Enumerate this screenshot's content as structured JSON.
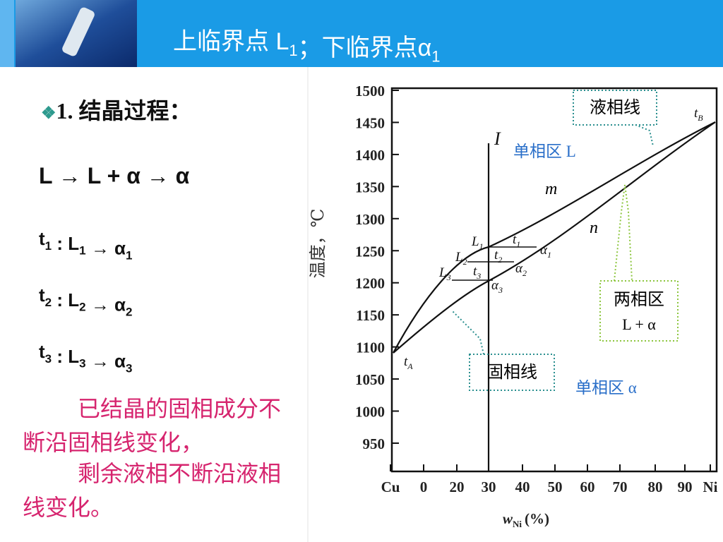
{
  "header": {
    "title": [
      {
        "text": "上临界点 L",
        "sub": "1"
      },
      {
        "text": "；下临界点α",
        "sub": "1"
      }
    ]
  },
  "section": {
    "bullet": "❖",
    "heading": "1. 结晶过程："
  },
  "process": "L → L + α → α",
  "steps": [
    [
      {
        "text": "t",
        "sub": "1"
      },
      {
        "text": " : L",
        "sub": "1"
      },
      {
        "text": " → α",
        "sub": "1"
      }
    ],
    [
      {
        "text": "t",
        "sub": "2"
      },
      {
        "text": " : L",
        "sub": "2"
      },
      {
        "text": " → α",
        "sub": "2"
      }
    ],
    [
      {
        "text": "t",
        "sub": "3"
      },
      {
        "text": " : L",
        "sub": "3"
      },
      {
        "text": " → α",
        "sub": "3"
      }
    ]
  ],
  "note": [
    "已结晶的固相成分不",
    "断沿固相线变化，",
    "剩余液相不断沿液相",
    "线变化。"
  ],
  "diagram": {
    "y_label": "温度，℃",
    "y_ticks": [
      "1500",
      "1450",
      "1400",
      "1350",
      "1300",
      "1250",
      "1200",
      "1150",
      "1100",
      "1050",
      "1000",
      "950"
    ],
    "x_ticks": [
      "Cu",
      "0",
      "20",
      "30",
      "40",
      "50",
      "60",
      "70",
      "80",
      "90",
      "Ni"
    ],
    "x_label": {
      "text": "w",
      "sub": "Ni",
      "unit": "(%)"
    },
    "line_label": "I",
    "curve_labels": {
      "m": "m",
      "n": "n"
    },
    "points": {
      "tA": {
        "text": "t",
        "sub": "A"
      },
      "tB": {
        "text": "t",
        "sub": "B"
      },
      "L1": {
        "text": "L",
        "sub": "1"
      },
      "L2": {
        "text": "L",
        "sub": "2"
      },
      "L3": {
        "text": "L",
        "sub": "3"
      },
      "t1": {
        "text": "t",
        "sub": "1"
      },
      "t2": {
        "text": "t",
        "sub": "2"
      },
      "t3": {
        "text": "t",
        "sub": "3"
      },
      "a1": {
        "text": "α",
        "sub": "1"
      },
      "a2": {
        "text": "α",
        "sub": "2"
      },
      "a3": {
        "text": "α",
        "sub": "3"
      }
    },
    "liquidus": "液相线",
    "solidus": "固相线",
    "region_L": "单相区 L",
    "region_a": "单相区 α",
    "two_phase": [
      "两相区",
      "L + α"
    ]
  }
}
